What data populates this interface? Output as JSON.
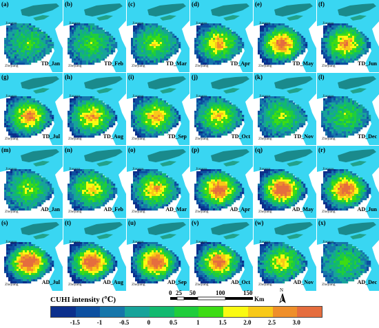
{
  "legend": {
    "title": "CUHI intensity (℃)",
    "ticks": [
      "-1.5",
      "-1",
      "-0.5",
      "0",
      "0.5",
      "1",
      "1.5",
      "2.0",
      "2.5",
      "3.0"
    ],
    "colors": [
      "#0b2f8c",
      "#0c4fa0",
      "#1676aa",
      "#17a39a",
      "#12b96f",
      "#1fcd3c",
      "#3ddc14",
      "#fafa12",
      "#f8c918",
      "#ef8f2a",
      "#e56d3e"
    ]
  },
  "scalebar": {
    "labels": [
      "0",
      "25",
      "50",
      "100",
      "150"
    ],
    "unit": "Km"
  },
  "north_arrow": {
    "letter": "N",
    "icon": "north-arrow-icon"
  },
  "map_labels": {
    "jiangsu": "Jiangsu",
    "zhejiang": "Zhejiang"
  },
  "panels": [
    {
      "label": "(a)",
      "tag": "TD_Jan",
      "intensity": 0.15
    },
    {
      "label": "(b)",
      "tag": "TD_Feb",
      "intensity": 0.18
    },
    {
      "label": "(c)",
      "tag": "TD_Mar",
      "intensity": 0.3
    },
    {
      "label": "(d)",
      "tag": "TD_Apr",
      "intensity": 0.55
    },
    {
      "label": "(e)",
      "tag": "TD_May",
      "intensity": 0.75
    },
    {
      "label": "(f)",
      "tag": "TD_Jun",
      "intensity": 0.6
    },
    {
      "label": "(g)",
      "tag": "TD_Jul",
      "intensity": 0.62
    },
    {
      "label": "(h)",
      "tag": "TD_Aug",
      "intensity": 0.58
    },
    {
      "label": "(i)",
      "tag": "TD_Sep",
      "intensity": 0.55
    },
    {
      "label": "(j)",
      "tag": "TD_Oct",
      "intensity": 0.45
    },
    {
      "label": "(k)",
      "tag": "TD_Nov",
      "intensity": 0.25
    },
    {
      "label": "(l)",
      "tag": "TD_Dec",
      "intensity": 0.18
    },
    {
      "label": "(m)",
      "tag": "AD_Jan",
      "intensity": 0.25
    },
    {
      "label": "(n)",
      "tag": "AD_Feb",
      "intensity": 0.45
    },
    {
      "label": "(o)",
      "tag": "AD_Mar",
      "intensity": 0.55
    },
    {
      "label": "(p)",
      "tag": "AD_Apr",
      "intensity": 0.8
    },
    {
      "label": "(q)",
      "tag": "AD_May",
      "intensity": 0.9
    },
    {
      "label": "(r)",
      "tag": "AD_Jun",
      "intensity": 0.8
    },
    {
      "label": "(s)",
      "tag": "AD_Jul",
      "intensity": 0.92
    },
    {
      "label": "(t)",
      "tag": "AD_Aug",
      "intensity": 0.88
    },
    {
      "label": "(u)",
      "tag": "AD_Sep",
      "intensity": 0.85
    },
    {
      "label": "(v)",
      "tag": "AD_Oct",
      "intensity": 0.75
    },
    {
      "label": "(w)",
      "tag": "AD_Nov",
      "intensity": 0.45
    },
    {
      "label": "(x)",
      "tag": "AD_Dec",
      "intensity": 0.15
    }
  ]
}
